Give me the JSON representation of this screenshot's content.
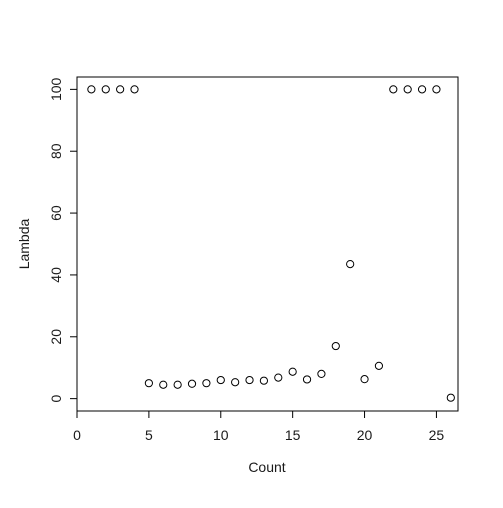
{
  "chart_data": {
    "type": "scatter",
    "title": "",
    "xlabel": "Count",
    "ylabel": "Lambda",
    "xlim": [
      0,
      26.5
    ],
    "ylim": [
      -4,
      104
    ],
    "x_ticks": [
      0,
      5,
      10,
      15,
      20,
      25
    ],
    "x_tick_labels": [
      "0",
      "5",
      "10",
      "15",
      "20",
      "25"
    ],
    "y_ticks": [
      0,
      20,
      40,
      60,
      80,
      100
    ],
    "y_tick_labels": [
      "0",
      "20",
      "40",
      "60",
      "80",
      "100"
    ],
    "grid": false,
    "legend": "none",
    "marker": "open-circle",
    "colors": {
      "axis": "#000000",
      "marker_stroke": "#000000",
      "background": "#ffffff"
    },
    "x": [
      1,
      2,
      3,
      4,
      5,
      6,
      7,
      8,
      9,
      10,
      11,
      12,
      13,
      14,
      15,
      16,
      17,
      18,
      19,
      20,
      21,
      22,
      23,
      24,
      25,
      26
    ],
    "y": [
      100,
      100,
      100,
      100,
      5,
      4.5,
      4.5,
      4.8,
      5,
      6,
      5.3,
      6,
      5.8,
      6.8,
      8.7,
      6.2,
      8,
      17,
      43.5,
      6.3,
      10.6,
      100,
      100,
      100,
      100,
      0.3
    ]
  }
}
